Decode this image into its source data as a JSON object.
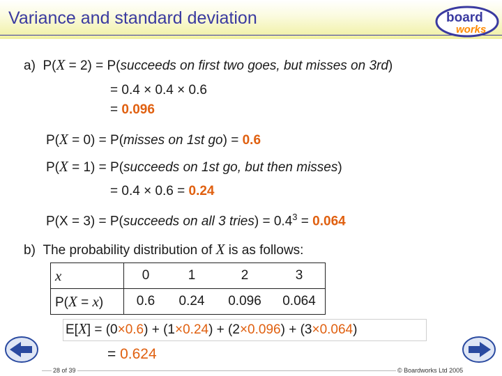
{
  "title": "Variance and standard deviation",
  "logo": {
    "word1": "board",
    "word2": "works"
  },
  "part_a": {
    "line1": {
      "label": "a)",
      "p": "P(",
      "x": "X",
      "mid": " = 2) = P(",
      "text": "succeeds on first two goes, but misses on 3rd",
      "end": ")"
    },
    "line2": "= 0.4 × 0.4 × 0.6",
    "line3": {
      "eq": "= ",
      "val": "0.096"
    },
    "line4": {
      "p": "P(",
      "x": "X",
      "mid": " = 0) = P(",
      "text": "misses on 1st go",
      "end": ") = ",
      "val": "0.6"
    },
    "line5": {
      "p": "P(",
      "x": "X",
      "mid": " = 1) = P(",
      "text": "succeeds on 1st go, but then misses",
      "end": ")"
    },
    "line6": {
      "text": "= 0.4 × 0.6 = ",
      "val": "0.24"
    },
    "line7": {
      "pre": "P(X = 3) = P(",
      "text": "succeeds on all 3 tries",
      "mid": ") = 0.4",
      "sup": "3",
      "eq": " = ",
      "val": "0.064"
    }
  },
  "part_b": {
    "label": "b)",
    "pre": "The probability distribution of ",
    "x": "X",
    "post": " is as follows:"
  },
  "table": {
    "header_x": "x",
    "header_p_pre": "P(",
    "header_p_x": "X",
    "header_p_eq": " = ",
    "header_p_lx": "x",
    "header_p_end": ")",
    "x_values": [
      "0",
      "1",
      "2",
      "3"
    ],
    "p_values": [
      "0.6",
      "0.24",
      "0.096",
      "0.064"
    ]
  },
  "expectation": {
    "lhs_e": "E[",
    "lhs_x": "X",
    "lhs_end": "] = (0",
    "t1": "×0.6",
    "p1": ") + (1",
    "t2": "×0.24",
    "p2": ") + (2",
    "t3": "×0.096",
    "p3": ") + (3",
    "t4": "×0.064",
    "p4": ")",
    "result_eq": "= ",
    "result": "0.624"
  },
  "footer": {
    "page": "28 of 39",
    "copyright": "© Boardworks Ltd 2005"
  },
  "colors": {
    "accent": "#e06010",
    "title": "#3a3aa0",
    "nav": "#2a4aa0"
  },
  "icons": {
    "prev": "left-arrow-icon",
    "next": "right-arrow-icon"
  }
}
